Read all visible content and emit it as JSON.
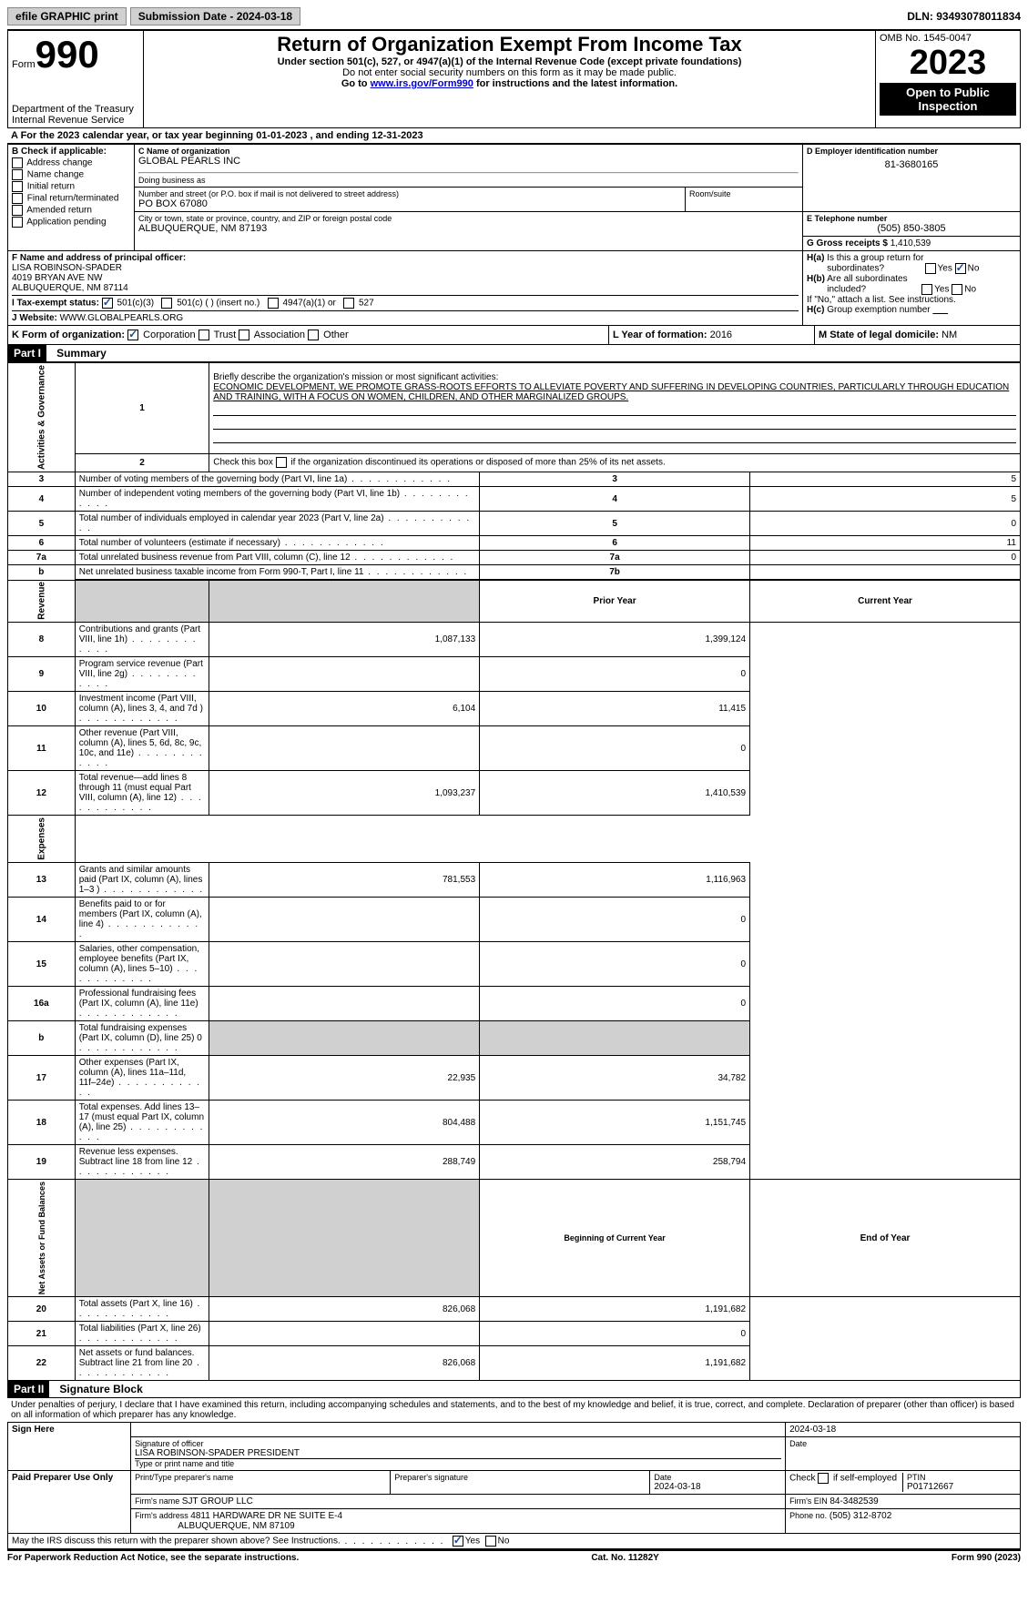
{
  "top": {
    "efile": "efile GRAPHIC print",
    "submission": "Submission Date - 2024-03-18",
    "dln": "DLN: 93493078011834"
  },
  "header": {
    "form_label": "Form",
    "form_number": "990",
    "title": "Return of Organization Exempt From Income Tax",
    "sub1": "Under section 501(c), 527, or 4947(a)(1) of the Internal Revenue Code (except private foundations)",
    "sub2": "Do not enter social security numbers on this form as it may be made public.",
    "sub3_prefix": "Go to ",
    "sub3_link": "www.irs.gov/Form990",
    "sub3_suffix": " for instructions and the latest information.",
    "dept": "Department of the Treasury\nInternal Revenue Service",
    "omb": "OMB No. 1545-0047",
    "year": "2023",
    "open": "Open to Public Inspection"
  },
  "sectionA": "A For the 2023 calendar year, or tax year beginning 01-01-2023   , and ending 12-31-2023",
  "boxB": {
    "title": "B Check if applicable:",
    "items": [
      "Address change",
      "Name change",
      "Initial return",
      "Final return/terminated",
      "Amended return",
      "Application pending"
    ]
  },
  "boxC": {
    "name_label": "C Name of organization",
    "name": "GLOBAL PEARLS INC",
    "dba_label": "Doing business as",
    "addr_label": "Number and street (or P.O. box if mail is not delivered to street address)",
    "addr": "PO BOX 67080",
    "room_label": "Room/suite",
    "city_label": "City or town, state or province, country, and ZIP or foreign postal code",
    "city": "ALBUQUERQUE, NM  87193"
  },
  "boxD": {
    "label": "D Employer identification number",
    "val": "81-3680165"
  },
  "boxE": {
    "label": "E Telephone number",
    "val": "(505) 850-3805"
  },
  "boxG": {
    "label": "G Gross receipts $",
    "val": "1,410,539"
  },
  "boxF": {
    "label": "F  Name and address of principal officer:",
    "name": "LISA ROBINSON-SPADER",
    "addr1": "4019 BRYAN AVE NW",
    "addr2": "ALBUQUERQUE, NM  87114"
  },
  "boxH": {
    "a": "H(a)  Is this a group return for subordinates?",
    "b": "H(b)  Are all subordinates included?",
    "b_note": "If \"No,\" attach a list. See instructions.",
    "c": "H(c)  Group exemption number  ",
    "yes": "Yes",
    "no": "No"
  },
  "boxI": {
    "label": "I   Tax-exempt status:",
    "opts": [
      "501(c)(3)",
      "501(c) (  ) (insert no.)",
      "4947(a)(1) or",
      "527"
    ]
  },
  "boxJ": {
    "label": "J   Website: ",
    "val": "WWW.GLOBALPEARLS.ORG"
  },
  "boxK": {
    "label": "K Form of organization:",
    "opts": [
      "Corporation",
      "Trust",
      "Association",
      "Other"
    ]
  },
  "boxL": {
    "label": "L Year of formation:",
    "val": "2016"
  },
  "boxM": {
    "label": "M State of legal domicile:",
    "val": "NM"
  },
  "part1": {
    "tag": "Part I",
    "title": "Summary"
  },
  "summary": {
    "line1_label": "Briefly describe the organization's mission or most significant activities:",
    "line1_text": "ECONOMIC DEVELOPMENT, WE PROMOTE GRASS-ROOTS EFFORTS TO ALLEVIATE POVERTY AND SUFFERING IN DEVELOPING COUNTRIES, PARTICULARLY THROUGH EDUCATION AND TRAINING, WITH A FOCUS ON WOMEN, CHILDREN, AND OTHER MARGINALIZED GROUPS.",
    "line2": "Check this box        if the organization discontinued its operations or disposed of more than 25% of its net assets.",
    "gov_rows": [
      {
        "n": "3",
        "label": "Number of voting members of the governing body (Part VI, line 1a)",
        "box": "3",
        "val": "5"
      },
      {
        "n": "4",
        "label": "Number of independent voting members of the governing body (Part VI, line 1b)",
        "box": "4",
        "val": "5"
      },
      {
        "n": "5",
        "label": "Total number of individuals employed in calendar year 2023 (Part V, line 2a)",
        "box": "5",
        "val": "0"
      },
      {
        "n": "6",
        "label": "Total number of volunteers (estimate if necessary)",
        "box": "6",
        "val": "11"
      },
      {
        "n": "7a",
        "label": "Total unrelated business revenue from Part VIII, column (C), line 12",
        "box": "7a",
        "val": "0"
      },
      {
        "n": "b",
        "label": "Net unrelated business taxable income from Form 990-T, Part I, line 11",
        "box": "7b",
        "val": ""
      }
    ],
    "prior_label": "Prior Year",
    "current_label": "Current Year",
    "rev_rows": [
      {
        "n": "8",
        "label": "Contributions and grants (Part VIII, line 1h)",
        "prior": "1,087,133",
        "curr": "1,399,124"
      },
      {
        "n": "9",
        "label": "Program service revenue (Part VIII, line 2g)",
        "prior": "",
        "curr": "0"
      },
      {
        "n": "10",
        "label": "Investment income (Part VIII, column (A), lines 3, 4, and 7d )",
        "prior": "6,104",
        "curr": "11,415"
      },
      {
        "n": "11",
        "label": "Other revenue (Part VIII, column (A), lines 5, 6d, 8c, 9c, 10c, and 11e)",
        "prior": "",
        "curr": "0"
      },
      {
        "n": "12",
        "label": "Total revenue—add lines 8 through 11 (must equal Part VIII, column (A), line 12)",
        "prior": "1,093,237",
        "curr": "1,410,539"
      }
    ],
    "exp_rows": [
      {
        "n": "13",
        "label": "Grants and similar amounts paid (Part IX, column (A), lines 1–3 )",
        "prior": "781,553",
        "curr": "1,116,963"
      },
      {
        "n": "14",
        "label": "Benefits paid to or for members (Part IX, column (A), line 4)",
        "prior": "",
        "curr": "0"
      },
      {
        "n": "15",
        "label": "Salaries, other compensation, employee benefits (Part IX, column (A), lines 5–10)",
        "prior": "",
        "curr": "0"
      },
      {
        "n": "16a",
        "label": "Professional fundraising fees (Part IX, column (A), line 11e)",
        "prior": "",
        "curr": "0"
      },
      {
        "n": "b",
        "label": "Total fundraising expenses (Part IX, column (D), line 25) 0",
        "prior": "GREY",
        "curr": "GREY"
      },
      {
        "n": "17",
        "label": "Other expenses (Part IX, column (A), lines 11a–11d, 11f–24e)",
        "prior": "22,935",
        "curr": "34,782"
      },
      {
        "n": "18",
        "label": "Total expenses. Add lines 13–17 (must equal Part IX, column (A), line 25)",
        "prior": "804,488",
        "curr": "1,151,745"
      },
      {
        "n": "19",
        "label": "Revenue less expenses. Subtract line 18 from line 12",
        "prior": "288,749",
        "curr": "258,794"
      }
    ],
    "bal_header": {
      "prior": "Beginning of Current Year",
      "curr": "End of Year"
    },
    "bal_rows": [
      {
        "n": "20",
        "label": "Total assets (Part X, line 16)",
        "prior": "826,068",
        "curr": "1,191,682"
      },
      {
        "n": "21",
        "label": "Total liabilities (Part X, line 26)",
        "prior": "",
        "curr": "0"
      },
      {
        "n": "22",
        "label": "Net assets or fund balances. Subtract line 21 from line 20",
        "prior": "826,068",
        "curr": "1,191,682"
      }
    ],
    "sections": {
      "gov": "Activities & Governance",
      "rev": "Revenue",
      "exp": "Expenses",
      "bal": "Net Assets or Fund Balances"
    }
  },
  "part2": {
    "tag": "Part II",
    "title": "Signature Block"
  },
  "sig": {
    "declaration": "Under penalties of perjury, I declare that I have examined this return, including accompanying schedules and statements, and to the best of my knowledge and belief, it is true, correct, and complete. Declaration of preparer (other than officer) is based on all information of which preparer has any knowledge.",
    "sign_here": "Sign Here",
    "date_top": "2024-03-18",
    "sig_officer_label": "Signature of officer",
    "officer_name": "LISA ROBINSON-SPADER  PRESIDENT",
    "type_label": "Type or print name and title",
    "date_label": "Date",
    "paid": "Paid Preparer Use Only",
    "prep_name_label": "Print/Type preparer's name",
    "prep_sig_label": "Preparer's signature",
    "prep_date": "2024-03-18",
    "check_if": "Check         if self-employed",
    "ptin_label": "PTIN",
    "ptin": "P01712667",
    "firm_name_label": "Firm's name     ",
    "firm_name": "SJT GROUP LLC",
    "firm_ein_label": "Firm's EIN  ",
    "firm_ein": "84-3482539",
    "firm_addr_label": "Firm's address ",
    "firm_addr1": "4811 HARDWARE DR NE SUITE E-4",
    "firm_addr2": "ALBUQUERQUE, NM  87109",
    "phone_label": "Phone no.",
    "phone": "(505) 312-8702",
    "discuss": "May the IRS discuss this return with the preparer shown above? See Instructions.",
    "yes": "Yes",
    "no": "No"
  },
  "footer": {
    "left": "For Paperwork Reduction Act Notice, see the separate instructions.",
    "mid": "Cat. No. 11282Y",
    "right": "Form 990 (2023)"
  }
}
